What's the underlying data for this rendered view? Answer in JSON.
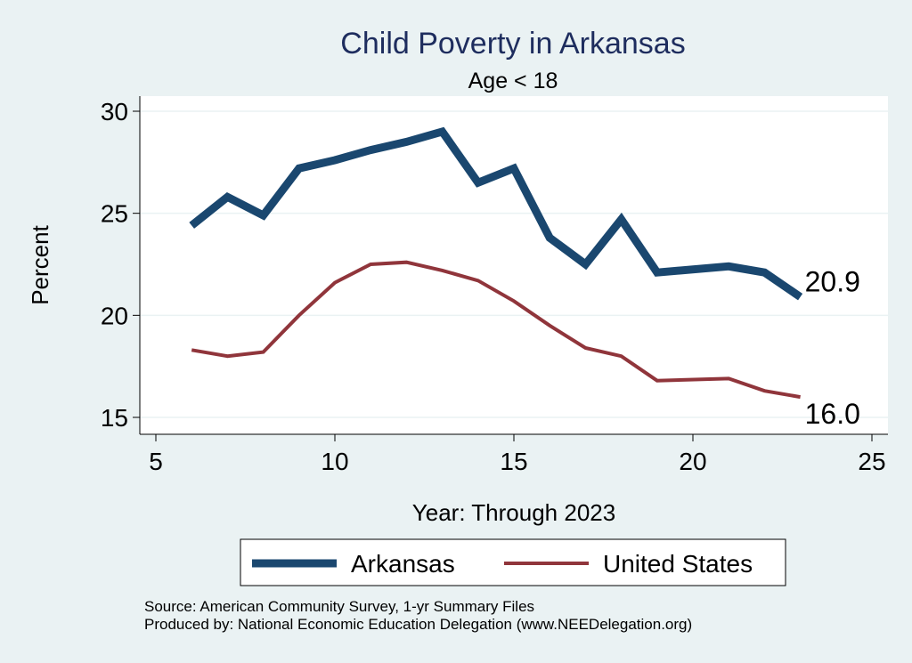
{
  "chart_data": {
    "type": "line",
    "title": "Child Poverty in Arkansas",
    "subtitle": "Age < 18",
    "xlabel": "Year: Through 2023",
    "ylabel": "Percent",
    "xlim": [
      5,
      25
    ],
    "ylim": [
      15,
      30
    ],
    "xticks": [
      5,
      10,
      15,
      20,
      25
    ],
    "yticks": [
      15,
      20,
      25,
      30
    ],
    "grid": true,
    "legend_position": "bottom",
    "series": [
      {
        "name": "Arkansas",
        "color": "#1a476f",
        "x": [
          6,
          7,
          8,
          9,
          10,
          11,
          12,
          13,
          14,
          15,
          16,
          17,
          18,
          19,
          21,
          22,
          23
        ],
        "values": [
          24.4,
          25.8,
          24.9,
          27.2,
          27.6,
          28.1,
          28.5,
          29.0,
          26.5,
          27.2,
          23.8,
          22.5,
          24.7,
          22.1,
          22.4,
          22.1,
          20.9
        ],
        "end_label": "20.9"
      },
      {
        "name": "United States",
        "color": "#90353b",
        "x": [
          6,
          7,
          8,
          9,
          10,
          11,
          12,
          13,
          14,
          15,
          16,
          17,
          18,
          19,
          21,
          22,
          23
        ],
        "values": [
          18.3,
          18.0,
          18.2,
          20.0,
          21.6,
          22.5,
          22.6,
          22.2,
          21.7,
          20.7,
          19.5,
          18.4,
          18.0,
          16.8,
          16.9,
          16.3,
          16.0
        ],
        "end_label": "16.0"
      }
    ],
    "notes": [
      "Source: American Community Survey, 1-yr Summary Files",
      "Produced by: National Economic Education Delegation (www.NEEDelegation.org)"
    ]
  }
}
